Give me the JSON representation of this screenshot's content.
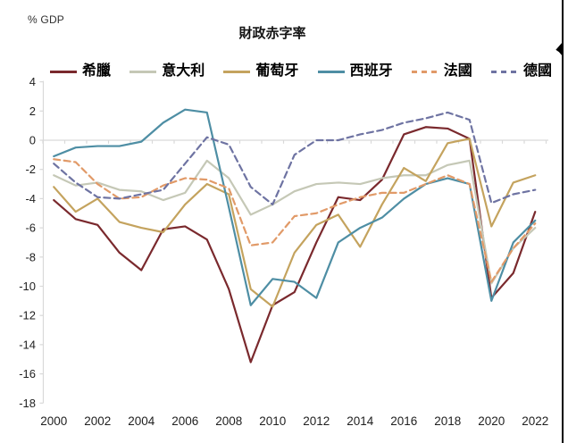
{
  "chart_data": {
    "type": "line",
    "title": "財政赤字率",
    "unit_label": "% GDP",
    "x": [
      2000,
      2001,
      2002,
      2003,
      2004,
      2005,
      2006,
      2007,
      2008,
      2009,
      2010,
      2011,
      2012,
      2013,
      2014,
      2015,
      2016,
      2017,
      2018,
      2019,
      2020,
      2021,
      2022
    ],
    "x_tick_labels": [
      "2000",
      "2002",
      "2004",
      "2006",
      "2008",
      "2010",
      "2012",
      "2014",
      "2016",
      "2018",
      "2020",
      "2022"
    ],
    "ylim": [
      -18,
      4
    ],
    "y_ticks": [
      4,
      2,
      0,
      -2,
      -4,
      -6,
      -8,
      -10,
      -12,
      -14,
      -16,
      -18
    ],
    "grid": "zero-line-only",
    "legend_position": "top",
    "axis_color": "#D9D9D9",
    "tick_label_color": "#1f1f1f",
    "series": [
      {
        "name": "希臘",
        "key": "greece",
        "color": "#7A292D",
        "dash": false,
        "values": [
          -4.1,
          -5.4,
          -5.8,
          -7.7,
          -8.9,
          -6.1,
          -5.9,
          -6.8,
          -10.2,
          -15.2,
          -11.3,
          -10.4,
          -7.0,
          -3.9,
          -4.1,
          -2.7,
          0.4,
          0.9,
          0.8,
          0.1,
          -10.8,
          -9.1,
          -4.9
        ]
      },
      {
        "name": "意大利",
        "key": "italy",
        "color": "#C5C8B6",
        "dash": false,
        "values": [
          -2.4,
          -3.1,
          -2.9,
          -3.4,
          -3.5,
          -4.1,
          -3.6,
          -1.4,
          -2.6,
          -5.1,
          -4.4,
          -3.5,
          -3.0,
          -2.9,
          -3.0,
          -2.6,
          -2.4,
          -2.4,
          -1.7,
          -1.4,
          -9.8,
          -7.4,
          -6.0
        ]
      },
      {
        "name": "葡萄牙",
        "key": "portugal",
        "color": "#C4A35E",
        "dash": false,
        "values": [
          -3.2,
          -4.9,
          -4.0,
          -5.6,
          -6.0,
          -6.3,
          -4.4,
          -3.0,
          -3.7,
          -10.2,
          -11.4,
          -7.7,
          -5.8,
          -5.1,
          -7.3,
          -4.4,
          -1.9,
          -2.8,
          -0.2,
          0.1,
          -5.9,
          -2.9,
          -2.4
        ]
      },
      {
        "name": "西班牙",
        "key": "spain",
        "color": "#4E8EA4",
        "dash": false,
        "values": [
          -1.1,
          -0.5,
          -0.4,
          -0.4,
          -0.1,
          1.2,
          2.1,
          1.9,
          -4.6,
          -11.3,
          -9.5,
          -9.7,
          -10.8,
          -7.0,
          -6.0,
          -5.3,
          -4.0,
          -3.0,
          -2.6,
          -3.0,
          -11.0,
          -7.0,
          -5.5
        ]
      },
      {
        "name": "法國",
        "key": "france",
        "color": "#E19A68",
        "dash": true,
        "values": [
          -1.3,
          -1.5,
          -3.0,
          -4.0,
          -3.9,
          -3.1,
          -2.6,
          -2.7,
          -3.3,
          -7.2,
          -7.0,
          -5.2,
          -5.0,
          -4.4,
          -3.9,
          -3.6,
          -3.6,
          -3.0,
          -2.4,
          -3.0,
          -9.7,
          -7.4,
          -5.7
        ]
      },
      {
        "name": "德國",
        "key": "germany",
        "color": "#6E73A2",
        "dash": true,
        "values": [
          -1.6,
          -2.9,
          -3.9,
          -4.0,
          -3.7,
          -3.4,
          -1.6,
          0.2,
          -0.3,
          -3.2,
          -4.4,
          -1.0,
          0.0,
          0.0,
          0.4,
          0.7,
          1.2,
          1.5,
          1.9,
          1.4,
          -4.3,
          -3.7,
          -3.4
        ]
      }
    ]
  }
}
